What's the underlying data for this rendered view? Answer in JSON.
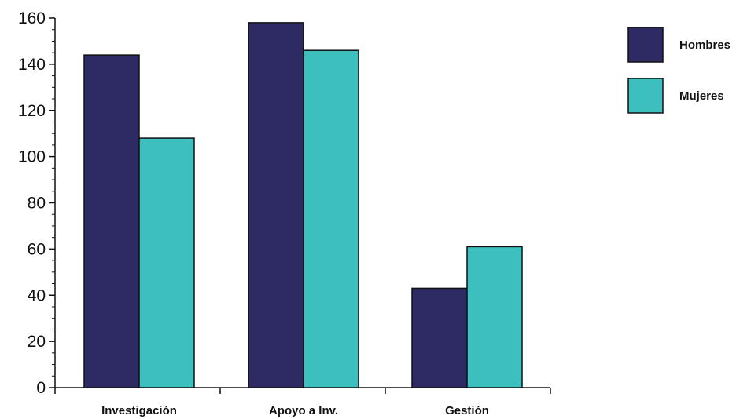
{
  "chart_data": {
    "type": "bar",
    "title": "",
    "xlabel": "",
    "ylabel": "",
    "categories": [
      "Investigación",
      "Apoyo a Inv.",
      "Gestión"
    ],
    "series": [
      {
        "name": "Hombres",
        "values": [
          144,
          158,
          43
        ],
        "color": "#2e2a63"
      },
      {
        "name": "Mujeres",
        "values": [
          108,
          146,
          61
        ],
        "color": "#3dbfc0"
      }
    ],
    "ylim": [
      0,
      160
    ],
    "yticks": [
      0,
      20,
      40,
      60,
      80,
      100,
      120,
      140,
      160
    ],
    "grid": false,
    "legend_position": "top-right"
  }
}
